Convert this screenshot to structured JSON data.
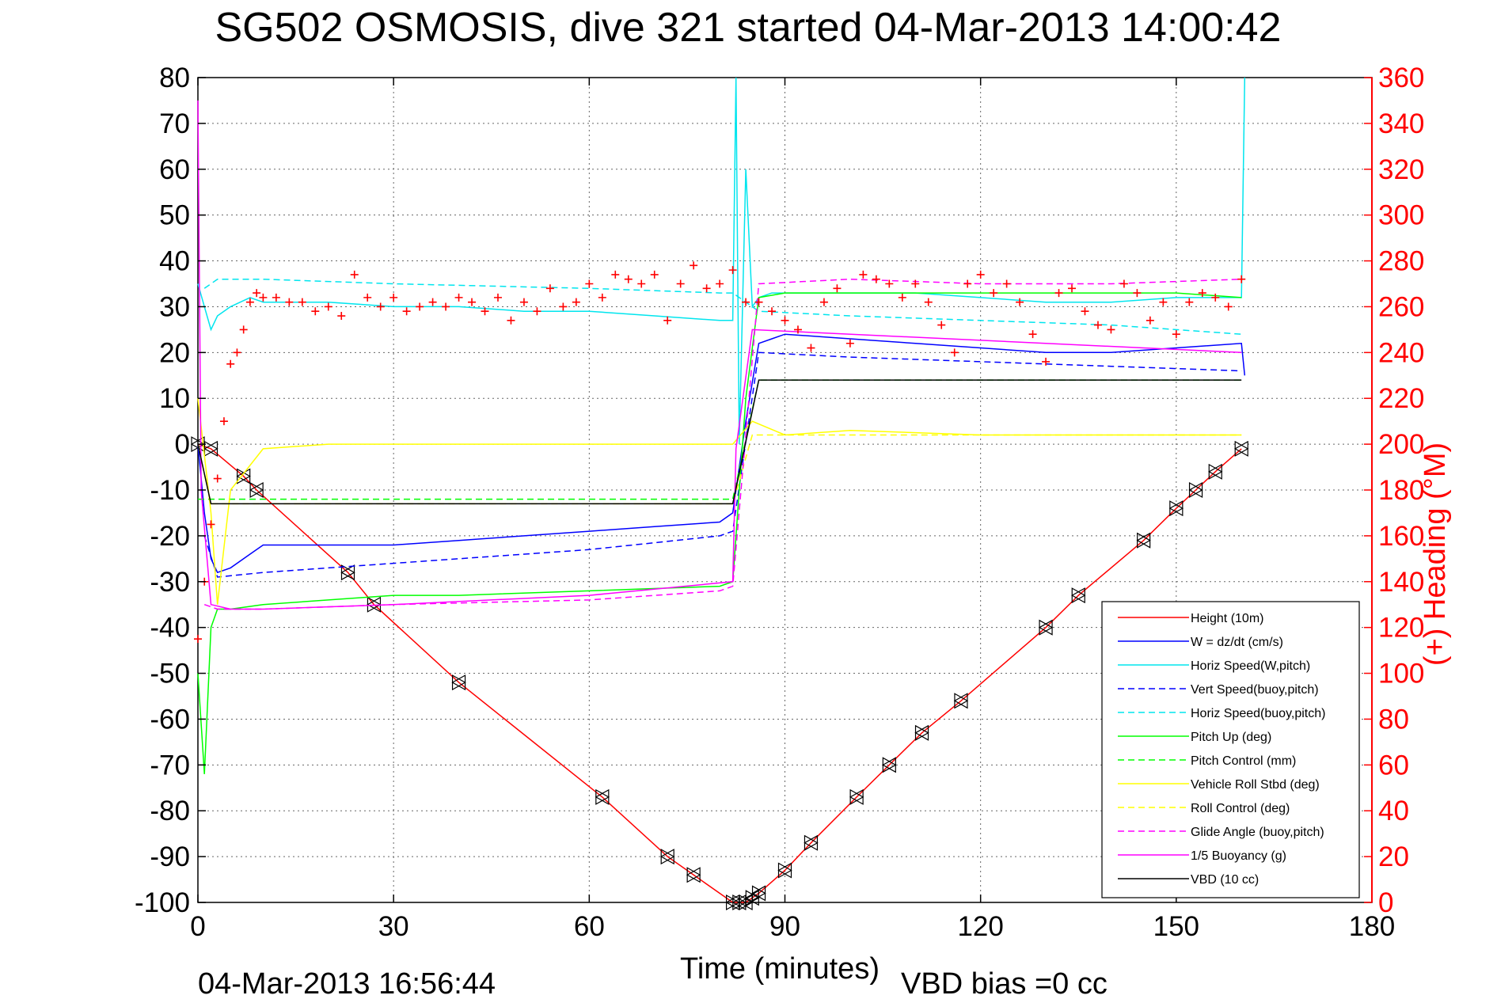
{
  "chart_data": {
    "type": "line",
    "title": "SG502 OSMOSIS, dive 321 started 04-Mar-2013 14:00:42",
    "xlabel": "Time (minutes)",
    "ylabel_right": "(+) Heading (°M)",
    "footer_timestamp": "04-Mar-2013 16:56:44",
    "footer_vbd": "VBD bias =0 cc",
    "xlim": [
      0,
      180
    ],
    "ylim": [
      -100,
      80
    ],
    "ylim_right": [
      0,
      360
    ],
    "xticks": [
      "0",
      "30",
      "60",
      "90",
      "120",
      "150",
      "180"
    ],
    "yticks": [
      "80",
      "70",
      "60",
      "50",
      "40",
      "30",
      "20",
      "10",
      "0",
      "-10",
      "-20",
      "-30",
      "-40",
      "-50",
      "-60",
      "-70",
      "-80",
      "-90",
      "-100"
    ],
    "yticks_right": [
      "360",
      "340",
      "320",
      "300",
      "280",
      "260",
      "240",
      "220",
      "200",
      "180",
      "160",
      "140",
      "120",
      "100",
      "80",
      "60",
      "40",
      "20",
      "0"
    ],
    "grid": true,
    "legend_position": "lower-right",
    "series": [
      {
        "name": "Height (10m)",
        "color": "#ff0000",
        "style": "solid",
        "marker": "triangle",
        "x": [
          0,
          2,
          7,
          9,
          23,
          27,
          40,
          62,
          72,
          76,
          82,
          83,
          84,
          85,
          86,
          90,
          94,
          101,
          106,
          111,
          117,
          130,
          135,
          145,
          150,
          153,
          156,
          160
        ],
        "y": [
          0,
          -1,
          -7,
          -10,
          -28,
          -35,
          -52,
          -77,
          -90,
          -94,
          -100,
          -100,
          -100,
          -99,
          -98,
          -93,
          -87,
          -77,
          -70,
          -63,
          -56,
          -40,
          -33,
          -21,
          -14,
          -10,
          -6,
          -1
        ]
      },
      {
        "name": "W = dz/dt (cm/s)",
        "color": "#0000ff",
        "style": "solid",
        "x": [
          0,
          1,
          2,
          3,
          5,
          8,
          10,
          20,
          30,
          40,
          50,
          60,
          70,
          80,
          82,
          84,
          86,
          88,
          90,
          100,
          110,
          120,
          130,
          140,
          150,
          160,
          160.5
        ],
        "y": [
          0,
          -15,
          -25,
          -28,
          -27,
          -24,
          -22,
          -22,
          -22,
          -21,
          -20,
          -19,
          -18,
          -17,
          -15,
          5,
          22,
          23,
          24,
          23,
          22,
          21,
          20,
          20,
          21,
          22,
          15
        ]
      },
      {
        "name": "Horiz Speed(W,pitch)",
        "color": "#00e5ee",
        "style": "solid",
        "x": [
          0,
          1,
          2,
          3,
          5,
          8,
          10,
          20,
          30,
          40,
          50,
          60,
          70,
          80,
          82,
          82.5,
          83,
          84,
          85,
          86,
          88,
          90,
          100,
          110,
          120,
          130,
          140,
          150,
          160,
          160.5
        ],
        "y": [
          35,
          30,
          25,
          28,
          30,
          32,
          31,
          31,
          30,
          30,
          29,
          29,
          28,
          27,
          27,
          80,
          0,
          60,
          30,
          32,
          33,
          33,
          33,
          33,
          32,
          31,
          31,
          32,
          32,
          80
        ]
      },
      {
        "name": "Vert Speed(buoy,pitch)",
        "color": "#0000ff",
        "style": "dashed",
        "x": [
          1,
          3,
          10,
          30,
          60,
          80,
          82,
          86,
          100,
          120,
          140,
          160
        ],
        "y": [
          -20,
          -29,
          -28,
          -26,
          -23,
          -20,
          -19,
          20,
          19,
          18,
          17,
          16
        ]
      },
      {
        "name": "Horiz Speed(buoy,pitch)",
        "color": "#00e5ee",
        "style": "dashed",
        "x": [
          1,
          3,
          10,
          30,
          60,
          80,
          82,
          86,
          100,
          120,
          140,
          160
        ],
        "y": [
          34,
          36,
          36,
          35,
          34,
          33,
          33,
          29,
          28,
          27,
          26,
          24
        ]
      },
      {
        "name": "Pitch Up (deg)",
        "color": "#00ff00",
        "style": "solid",
        "x": [
          0,
          1,
          2,
          3,
          5,
          10,
          20,
          30,
          40,
          60,
          80,
          82,
          84,
          86,
          90,
          100,
          110,
          120,
          130,
          140,
          150,
          160
        ],
        "y": [
          -50,
          -72,
          -40,
          -36,
          -36,
          -35,
          -34,
          -33,
          -33,
          -32,
          -31,
          -30,
          10,
          32,
          33,
          33,
          33,
          33,
          33,
          33,
          33,
          32
        ]
      },
      {
        "name": "Pitch Control (mm)",
        "color": "#00ff00",
        "style": "dashed",
        "x": [
          0,
          2,
          82,
          86,
          160
        ],
        "y": [
          -12,
          -12,
          -12,
          14,
          14
        ]
      },
      {
        "name": "Vehicle Roll Stbd (deg)",
        "color": "#ffff00",
        "style": "solid",
        "x": [
          0,
          2,
          3,
          5,
          10,
          20,
          40,
          60,
          80,
          82,
          85,
          90,
          100,
          120,
          140,
          160
        ],
        "y": [
          10,
          -15,
          -35,
          -10,
          -1,
          0,
          0,
          0,
          0,
          0,
          5,
          2,
          3,
          2,
          2,
          2
        ]
      },
      {
        "name": "Roll Control (deg)",
        "color": "#ffff00",
        "style": "dashed",
        "x": [
          0,
          2,
          82,
          85,
          160
        ],
        "y": [
          0,
          -13,
          -13,
          2,
          2
        ]
      },
      {
        "name": "Glide Angle (buoy,pitch)",
        "color": "#ff00ff",
        "style": "dashed",
        "x": [
          1,
          3,
          10,
          30,
          60,
          80,
          82,
          86,
          100,
          120,
          140,
          160
        ],
        "y": [
          -35,
          -36,
          -36,
          -35,
          -34,
          -32,
          -31,
          35,
          36,
          35,
          35,
          36
        ]
      },
      {
        "name": "1/5 Buoyancy (g)",
        "color": "#ff00ff",
        "style": "solid",
        "x": [
          0,
          0.5,
          2,
          5,
          10,
          30,
          60,
          82,
          82.5,
          85,
          160
        ],
        "y": [
          75,
          -10,
          -35,
          -36,
          -36,
          -35,
          -33,
          -30,
          -1,
          25,
          20
        ]
      },
      {
        "name": "VBD (10 cc)",
        "color": "#000000",
        "style": "solid",
        "x": [
          0,
          2,
          82,
          86,
          160
        ],
        "y": [
          0,
          -13,
          -13,
          14,
          14
        ]
      },
      {
        "name": "Heading",
        "color": "#ff0000",
        "style": "markers",
        "marker": "plus",
        "axis": "right",
        "x": [
          0,
          1,
          2,
          3,
          4,
          5,
          6,
          7,
          8,
          9,
          10,
          12,
          14,
          16,
          18,
          20,
          22,
          24,
          26,
          28,
          30,
          32,
          34,
          36,
          38,
          40,
          42,
          44,
          46,
          48,
          50,
          52,
          54,
          56,
          58,
          60,
          62,
          64,
          66,
          68,
          70,
          72,
          74,
          76,
          78,
          80,
          82,
          84,
          86,
          88,
          90,
          92,
          94,
          96,
          98,
          100,
          102,
          104,
          106,
          108,
          110,
          112,
          114,
          116,
          118,
          120,
          122,
          124,
          126,
          128,
          130,
          132,
          134,
          136,
          138,
          140,
          142,
          144,
          146,
          148,
          150,
          152,
          154,
          156,
          158,
          160
        ],
        "y": [
          115,
          140,
          165,
          185,
          210,
          235,
          240,
          250,
          262,
          266,
          264,
          264,
          262,
          262,
          258,
          260,
          256,
          274,
          264,
          260,
          264,
          258,
          260,
          262,
          260,
          264,
          262,
          258,
          264,
          254,
          262,
          258,
          268,
          260,
          262,
          270,
          264,
          274,
          272,
          270,
          274,
          254,
          270,
          278,
          268,
          270,
          276,
          262,
          262,
          258,
          254,
          250,
          242,
          262,
          268,
          244,
          274,
          272,
          270,
          264,
          270,
          262,
          252,
          240,
          270,
          274,
          266,
          270,
          262,
          248,
          236,
          266,
          268,
          258,
          252,
          250,
          270,
          266,
          254,
          262,
          248,
          262,
          266,
          264,
          260,
          272
        ]
      }
    ]
  }
}
